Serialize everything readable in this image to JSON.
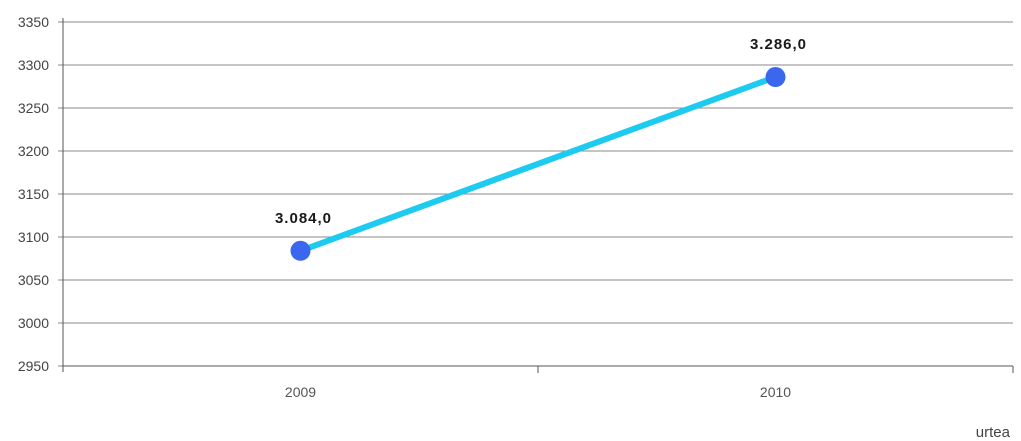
{
  "chart_data": {
    "type": "line",
    "categories": [
      "2009",
      "2010"
    ],
    "series": [
      {
        "values": [
          3084.0,
          3286.0
        ],
        "labels": [
          "3.084,0",
          "3.286,0"
        ]
      }
    ],
    "xlabel": "urtea",
    "ylabel": "",
    "ylim": [
      2950,
      3350
    ],
    "yticks": [
      "3350",
      "3300",
      "3250",
      "3200",
      "3150",
      "3100",
      "3050",
      "3000",
      "2950"
    ],
    "grid": true,
    "legend": "none",
    "colors": {
      "line": "#1ecbf0",
      "marker": "#3b66ee",
      "grid": "#8a8a8a",
      "axis": "#555555"
    }
  }
}
